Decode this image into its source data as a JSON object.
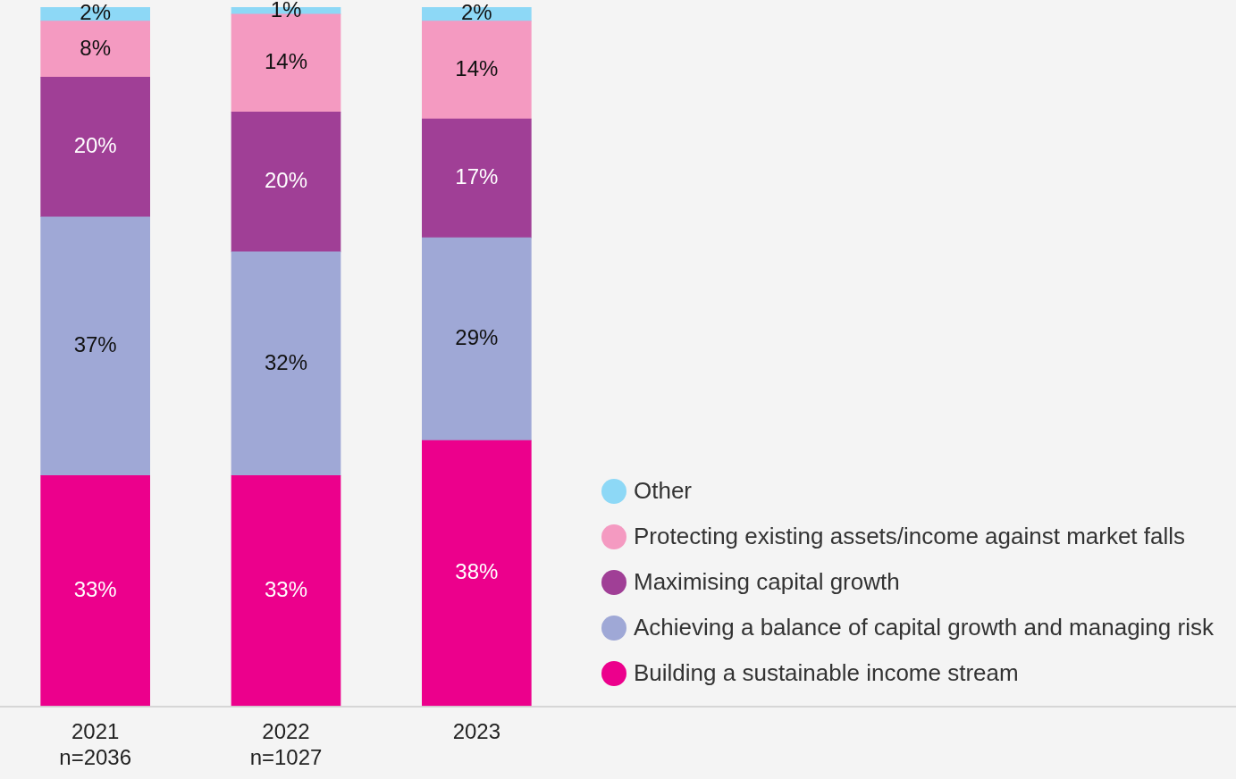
{
  "chart_data": {
    "type": "bar",
    "stacked": true,
    "legend": "right",
    "categories": [
      "2021\nn=2036",
      "2022\nn=1027",
      "2023"
    ],
    "series": [
      {
        "name": "Building a sustainable income stream",
        "color": "#ec008c",
        "values": [
          33,
          33,
          38
        ],
        "value_labels": [
          "33%",
          "33%",
          "38%"
        ]
      },
      {
        "name": "Achieving a balance of capital growth and managing risk",
        "color": "#9fa8d6",
        "values": [
          37,
          32,
          29
        ],
        "value_labels": [
          "37%",
          "32%",
          "29%"
        ]
      },
      {
        "name": "Maximising capital growth",
        "color": "#a03f96",
        "values": [
          20,
          20,
          17
        ],
        "value_labels": [
          "20%",
          "20%",
          "17%"
        ]
      },
      {
        "name": "Protecting existing assets/income against market falls",
        "color": "#f49ac1",
        "values": [
          8,
          14,
          14
        ],
        "value_labels": [
          "8%",
          "14%",
          "14%"
        ]
      },
      {
        "name": "Other",
        "color": "#8dd8f6",
        "values": [
          2,
          1,
          2
        ],
        "value_labels": [
          "2%",
          "1%",
          "2%"
        ]
      }
    ]
  }
}
